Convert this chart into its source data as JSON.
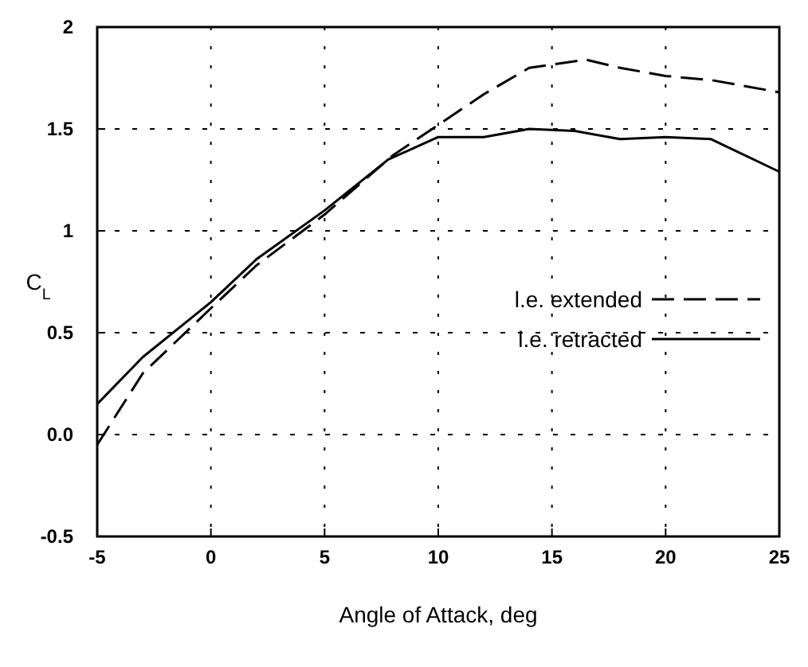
{
  "chart_data": {
    "type": "line",
    "xlabel": "Angle of Attack, deg",
    "ylabel": "C$_{L}$",
    "xlim": [
      -5,
      25
    ],
    "ylim": [
      -0.5,
      2
    ],
    "xticks": [
      -5,
      0,
      5,
      10,
      15,
      20,
      25
    ],
    "yticks": [
      -0.5,
      {
        "value": 0,
        "label": "0.0"
      },
      0.5,
      1,
      1.5,
      2
    ],
    "grid": true,
    "legend": "right",
    "series": [
      {
        "name": "l.e. extended",
        "color": "#000000",
        "line_style": "dashed",
        "x": [
          -5,
          -3,
          0,
          2,
          5,
          8,
          10,
          12,
          14,
          16.5,
          18,
          20,
          22,
          25
        ],
        "values": [
          -0.05,
          0.3,
          0.62,
          0.83,
          1.08,
          1.37,
          1.52,
          1.67,
          1.8,
          1.84,
          1.8,
          1.76,
          1.74,
          1.68
        ]
      },
      {
        "name": "l.e. retracted",
        "color": "#000000",
        "line_style": "solid",
        "x": [
          -5,
          -3,
          0,
          2,
          5,
          7.8,
          10,
          12,
          14,
          16,
          18,
          20,
          22,
          25
        ],
        "values": [
          0.15,
          0.38,
          0.65,
          0.86,
          1.1,
          1.35,
          1.46,
          1.46,
          1.5,
          1.49,
          1.45,
          1.46,
          1.45,
          1.29
        ]
      }
    ]
  }
}
